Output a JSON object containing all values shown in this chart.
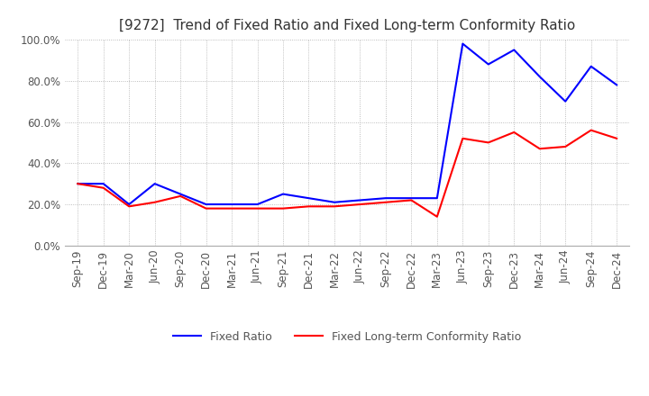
{
  "title": "[9272]  Trend of Fixed Ratio and Fixed Long-term Conformity Ratio",
  "x_labels": [
    "Sep-19",
    "Dec-19",
    "Mar-20",
    "Jun-20",
    "Sep-20",
    "Dec-20",
    "Mar-21",
    "Jun-21",
    "Sep-21",
    "Dec-21",
    "Mar-22",
    "Jun-22",
    "Sep-22",
    "Dec-22",
    "Mar-23",
    "Jun-23",
    "Sep-23",
    "Dec-23",
    "Mar-24",
    "Jun-24",
    "Sep-24",
    "Dec-24"
  ],
  "fixed_ratio": [
    30,
    30,
    20,
    30,
    25,
    20,
    20,
    20,
    25,
    23,
    21,
    22,
    23,
    23,
    23,
    98,
    88,
    95,
    82,
    70,
    87,
    78
  ],
  "fixed_lt_ratio": [
    30,
    28,
    19,
    21,
    24,
    18,
    18,
    18,
    18,
    19,
    19,
    20,
    21,
    22,
    14,
    52,
    50,
    55,
    47,
    48,
    56,
    52
  ],
  "ylim": [
    0,
    100
  ],
  "yticks": [
    0,
    20,
    40,
    60,
    80,
    100
  ],
  "ytick_labels": [
    "0.0%",
    "20.0%",
    "40.0%",
    "60.0%",
    "80.0%",
    "100.0%"
  ],
  "fixed_ratio_color": "#0000FF",
  "fixed_lt_ratio_color": "#FF0000",
  "background_color": "#FFFFFF",
  "grid_color": "#AAAAAA",
  "title_fontsize": 11,
  "legend_fontsize": 9,
  "tick_fontsize": 8.5
}
